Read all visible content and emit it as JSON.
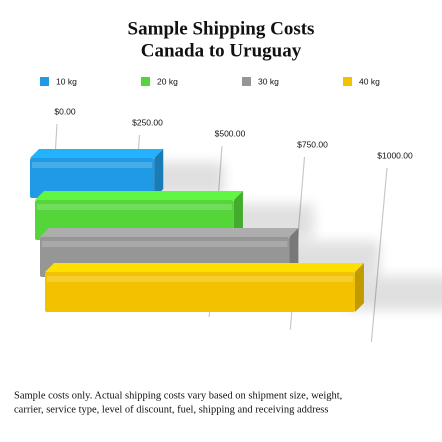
{
  "chart_data": {
    "type": "bar3d",
    "title": "Sample Shipping Costs",
    "subtitle": "Canada to Uruguay",
    "series": [
      {
        "name": "10 kg",
        "color": "#1e9be4",
        "values": [
          350
        ]
      },
      {
        "name": "20 kg",
        "color": "#54d63a",
        "values": [
          575
        ]
      },
      {
        "name": "30 kg",
        "color": "#969696",
        "values": [
          740
        ]
      },
      {
        "name": "40 kg",
        "color": "#f2c200",
        "values": [
          945
        ]
      }
    ],
    "xlim": [
      0,
      1000
    ],
    "xticks": [
      {
        "value": 0,
        "label": "$0.00"
      },
      {
        "value": 250,
        "label": "$250.00"
      },
      {
        "value": 500,
        "label": "$500.00"
      },
      {
        "value": 750,
        "label": "$750.00"
      },
      {
        "value": 1000,
        "label": "$1000.00"
      }
    ],
    "grid": true,
    "legend": "top",
    "footnote": [
      "Sample costs only. Actual shipping costs vary based on shipment size, weight,",
      "carrier, service type, level of discount, fuel, shipping and receiving address"
    ]
  }
}
